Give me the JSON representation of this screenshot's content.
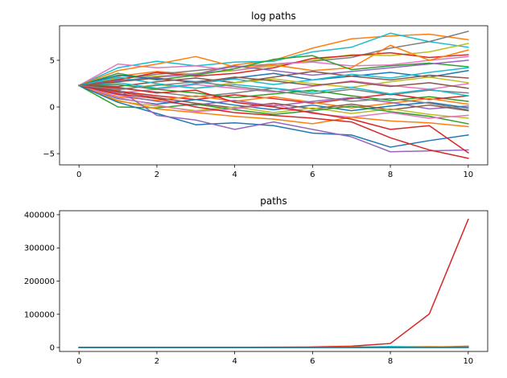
{
  "chart_data": [
    {
      "type": "line",
      "title": "log paths",
      "xlabel": "",
      "ylabel": "",
      "xlim": [
        -0.5,
        10.5
      ],
      "ylim": [
        -6.2,
        8.7
      ],
      "xticks": [
        0,
        2,
        4,
        6,
        8,
        10
      ],
      "yticks": [
        -5,
        0,
        5
      ],
      "x": [
        0,
        1,
        2,
        3,
        4,
        5,
        6,
        7,
        8,
        9,
        10
      ],
      "grid": false,
      "legend": "none",
      "series": [
        {
          "color": "#ff7f0e",
          "values": [
            2.3,
            3.3,
            3.8,
            3.5,
            4.5,
            5.0,
            6.3,
            7.3,
            7.6,
            7.8,
            7.2
          ]
        },
        {
          "color": "#17becf",
          "values": [
            2.3,
            4.2,
            4.9,
            4.4,
            4.8,
            4.9,
            5.9,
            6.4,
            7.9,
            7.0,
            6.4
          ]
        },
        {
          "color": "#7f7f7f",
          "values": [
            2.3,
            3.0,
            3.5,
            3.9,
            4.3,
            4.6,
            4.9,
            5.3,
            6.3,
            7.0,
            8.1
          ]
        },
        {
          "color": "#bcbd22",
          "values": [
            2.3,
            3.1,
            3.3,
            3.6,
            3.9,
            4.4,
            5.0,
            5.6,
            5.5,
            5.9,
            6.8
          ]
        },
        {
          "color": "#d62728",
          "values": [
            2.3,
            2.9,
            3.7,
            3.3,
            3.6,
            4.2,
            5.2,
            5.5,
            5.8,
            5.3,
            5.6
          ]
        },
        {
          "color": "#e377c2",
          "values": [
            2.3,
            4.6,
            4.2,
            4.4,
            3.9,
            4.6,
            4.8,
            4.4,
            4.5,
            5.0,
            5.4
          ]
        },
        {
          "color": "#ff7f0e",
          "values": [
            2.3,
            3.9,
            4.6,
            5.4,
            4.3,
            4.5,
            3.9,
            4.2,
            6.6,
            5.0,
            6.1
          ]
        },
        {
          "color": "#2ca02c",
          "values": [
            2.3,
            3.6,
            2.9,
            3.4,
            4.1,
            5.1,
            5.5,
            4.0,
            4.4,
            4.7,
            4.3
          ]
        },
        {
          "color": "#9467bd",
          "values": [
            2.3,
            2.8,
            3.2,
            3.5,
            4.4,
            3.9,
            3.4,
            3.8,
            4.2,
            4.6,
            5.0
          ]
        },
        {
          "color": "#1f77b4",
          "values": [
            2.3,
            3.4,
            3.0,
            2.7,
            3.1,
            3.6,
            2.9,
            3.3,
            3.7,
            3.2,
            3.9
          ]
        },
        {
          "color": "#8c564b",
          "values": [
            2.3,
            2.2,
            2.7,
            3.1,
            2.6,
            3.2,
            3.8,
            3.3,
            2.9,
            3.4,
            3.1
          ]
        },
        {
          "color": "#17becf",
          "values": [
            2.3,
            2.6,
            2.0,
            2.5,
            3.0,
            2.4,
            2.9,
            3.5,
            3.1,
            3.7,
            4.2
          ]
        },
        {
          "color": "#bcbd22",
          "values": [
            2.3,
            1.8,
            2.4,
            2.0,
            2.6,
            3.0,
            2.5,
            2.1,
            2.7,
            3.2,
            2.6
          ]
        },
        {
          "color": "#e377c2",
          "values": [
            2.3,
            1.5,
            1.9,
            2.4,
            2.0,
            1.6,
            2.2,
            2.8,
            2.3,
            1.9,
            2.5
          ]
        },
        {
          "color": "#7f7f7f",
          "values": [
            2.3,
            2.0,
            1.6,
            1.1,
            1.5,
            2.0,
            1.4,
            1.9,
            1.3,
            1.8,
            1.5
          ]
        },
        {
          "color": "#2ca02c",
          "values": [
            2.3,
            2.4,
            1.9,
            1.5,
            1.0,
            1.4,
            1.8,
            1.2,
            0.7,
            1.1,
            0.6
          ]
        },
        {
          "color": "#d62728",
          "values": [
            2.3,
            1.7,
            1.2,
            0.8,
            1.3,
            0.9,
            0.4,
            0.9,
            1.4,
            0.8,
            1.2
          ]
        },
        {
          "color": "#ff7f0e",
          "values": [
            2.3,
            1.1,
            0.7,
            1.2,
            0.6,
            1.1,
            0.5,
            -0.1,
            0.4,
            0.9,
            0.3
          ]
        },
        {
          "color": "#9467bd",
          "values": [
            2.3,
            1.3,
            0.6,
            0.2,
            0.7,
            0.1,
            0.6,
            1.0,
            0.5,
            -0.2,
            0.1
          ]
        },
        {
          "color": "#1f77b4",
          "values": [
            2.3,
            0.9,
            0.3,
            0.8,
            0.2,
            -0.3,
            0.2,
            -0.4,
            0.1,
            0.5,
            -0.1
          ]
        },
        {
          "color": "#8c564b",
          "values": [
            2.3,
            1.6,
            1.0,
            0.4,
            -0.1,
            0.4,
            -0.2,
            0.3,
            -0.3,
            0.2,
            -0.4
          ]
        },
        {
          "color": "#bcbd22",
          "values": [
            2.3,
            0.6,
            0.1,
            -0.4,
            0.0,
            -0.6,
            -0.1,
            -0.7,
            -0.2,
            -0.8,
            -1.2
          ]
        },
        {
          "color": "#2ca02c",
          "values": [
            2.3,
            0.0,
            -0.1,
            0.3,
            -0.3,
            -0.8,
            -0.4,
            0.1,
            -0.5,
            -1.0,
            -1.8
          ]
        },
        {
          "color": "#e377c2",
          "values": [
            2.3,
            1.0,
            0.2,
            -0.5,
            -0.2,
            0.3,
            -0.7,
            -1.1,
            -0.6,
            -1.2,
            -0.9
          ]
        },
        {
          "color": "#ff7f0e",
          "values": [
            2.3,
            0.7,
            -0.2,
            -0.6,
            -1.0,
            -1.3,
            -1.8,
            -1.1,
            -1.5,
            -1.7,
            -2.1
          ]
        },
        {
          "color": "#1f77b4",
          "values": [
            2.3,
            0.5,
            -0.7,
            -1.9,
            -1.7,
            -2.0,
            -2.8,
            -3.0,
            -4.3,
            -3.6,
            -3.0
          ]
        },
        {
          "color": "#9467bd",
          "values": [
            2.3,
            1.9,
            -0.9,
            -1.4,
            -2.4,
            -1.6,
            -2.4,
            -3.2,
            -4.8,
            -4.7,
            -4.6
          ]
        },
        {
          "color": "#d62728",
          "values": [
            2.3,
            1.4,
            0.9,
            0.0,
            -0.6,
            -0.9,
            -1.2,
            -1.6,
            -3.3,
            -4.6,
            -5.5
          ]
        },
        {
          "color": "#d62728",
          "values": [
            2.3,
            2.1,
            1.5,
            1.8,
            0.5,
            0.0,
            -0.6,
            -1.3,
            -2.4,
            -2.0,
            -4.9
          ]
        },
        {
          "color": "#17becf",
          "values": [
            2.3,
            3.2,
            2.5,
            2.0,
            2.4,
            2.0,
            1.6,
            2.1,
            1.4,
            1.9,
            1.2
          ]
        },
        {
          "color": "#8c564b",
          "values": [
            2.3,
            2.7,
            3.1,
            2.6,
            3.2,
            2.8,
            2.3,
            2.7,
            2.2,
            2.6,
            2.0
          ]
        },
        {
          "color": "#7f7f7f",
          "values": [
            2.3,
            1.9,
            2.3,
            2.7,
            2.2,
            1.7,
            1.2,
            0.6,
            0.9,
            0.4,
            -0.3
          ]
        }
      ]
    },
    {
      "type": "line",
      "title": "paths",
      "xlabel": "",
      "ylabel": "",
      "xlim": [
        -0.5,
        10.5
      ],
      "ylim": [
        -12000,
        412000
      ],
      "xticks": [
        0,
        2,
        4,
        6,
        8,
        10
      ],
      "yticks": [
        0,
        100000,
        200000,
        300000,
        400000
      ],
      "x": [
        0,
        1,
        2,
        3,
        4,
        5,
        6,
        7,
        8,
        9,
        10
      ],
      "grid": false,
      "legend": "none",
      "series": [
        {
          "color": "#d62728",
          "values": [
            10,
            20,
            60,
            150,
            400,
            900,
            1500,
            4000,
            12000,
            101000,
            386000
          ]
        },
        {
          "color": "#7f7f7f",
          "values": [
            10,
            20,
            30,
            50,
            70,
            100,
            130,
            200,
            550,
            1100,
            4000
          ]
        },
        {
          "color": "#ff7f0e",
          "values": [
            10,
            30,
            50,
            220,
            90,
            150,
            550,
            1500,
            2000,
            2400,
            1300
          ]
        },
        {
          "color": "#17becf",
          "values": [
            10,
            70,
            130,
            80,
            120,
            130,
            360,
            600,
            2700,
            1100,
            600
          ]
        },
        {
          "color": "#2ca02c",
          "values": [
            10,
            5,
            3,
            4,
            3,
            5,
            6,
            4,
            3,
            2,
            1
          ]
        },
        {
          "color": "#1f77b4",
          "values": [
            10,
            8,
            5,
            3,
            4,
            2,
            1,
            1,
            1,
            1,
            1
          ]
        }
      ]
    }
  ]
}
